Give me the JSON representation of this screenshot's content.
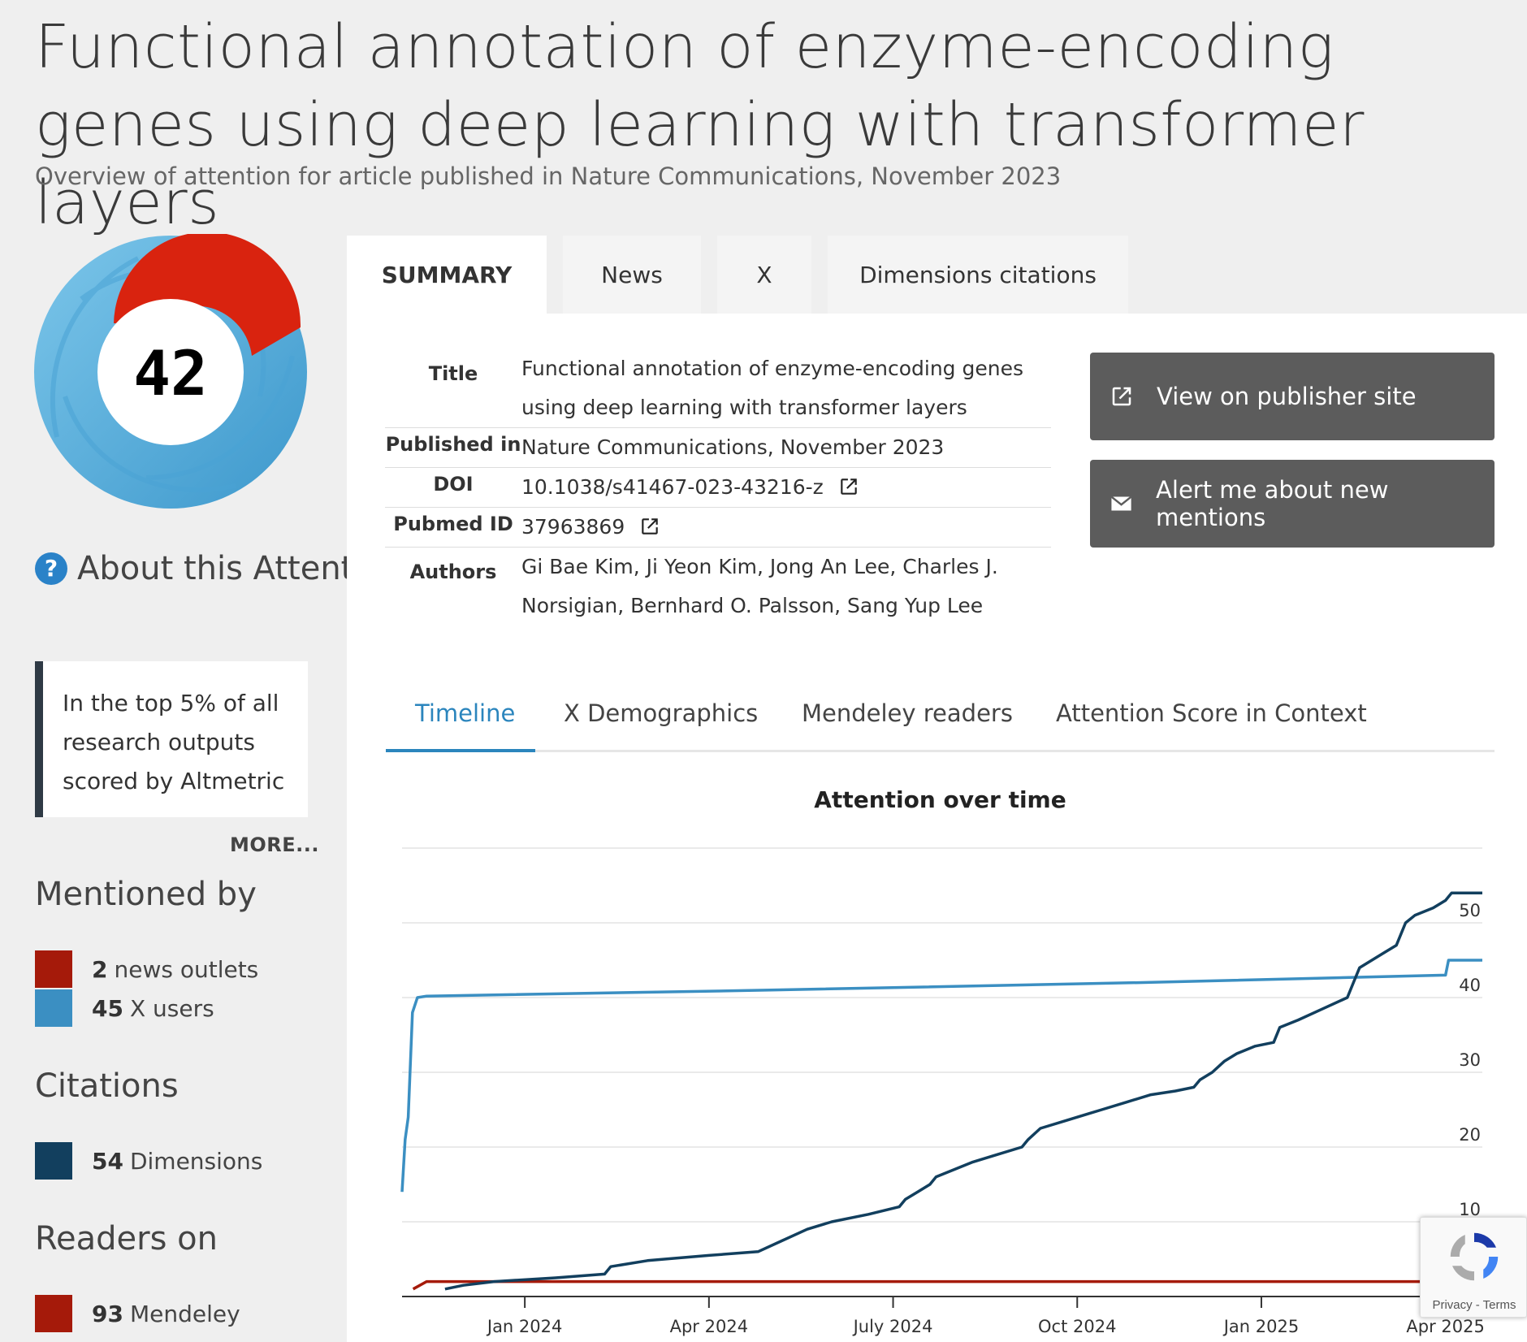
{
  "page": {
    "title": "Functional annotation of enzyme-encoding genes using deep learning with transformer layers",
    "subtitle": "Overview of attention for article published in Nature Communications, November 2023"
  },
  "score": {
    "value": "42",
    "colors": {
      "news": "#d9230f",
      "x": "#5aaee0"
    }
  },
  "about": {
    "label": "About this Attention Score",
    "help_icon": "question-icon"
  },
  "rank": {
    "text": "In the top 5% of all research outputs scored by Altmetric",
    "more_label": "MORE..."
  },
  "mentioned_by": {
    "heading": "Mentioned by",
    "items": [
      {
        "count": "2",
        "label": "news outlets",
        "color": "#a51a0a"
      },
      {
        "count": "45",
        "label": "X users",
        "color": "#3b8fc2"
      }
    ]
  },
  "citations": {
    "heading": "Citations",
    "items": [
      {
        "count": "54",
        "label": "Dimensions",
        "color": "#123f5e"
      }
    ]
  },
  "readers": {
    "heading": "Readers on",
    "items": [
      {
        "count": "93",
        "label": "Mendeley",
        "color": "#a51a0a"
      }
    ]
  },
  "tabs": [
    "SUMMARY",
    "News",
    "X",
    "Dimensions citations"
  ],
  "meta": {
    "title_label": "Title",
    "title_value": "Functional annotation of enzyme-encoding genes using deep learning with transformer layers",
    "published_label": "Published in",
    "published_value": "Nature Communications, November 2023",
    "doi_label": "DOI",
    "doi_value": "10.1038/s41467-023-43216-z",
    "pubmed_label": "Pubmed ID",
    "pubmed_value": "37963869",
    "authors_label": "Authors",
    "authors_value": "Gi Bae Kim, Ji Yeon Kim, Jong An Lee, Charles J. Norsigian, Bernhard O. Palsson, Sang Yup Lee"
  },
  "buttons": {
    "publisher": "View on publisher site",
    "alert": "Alert me about new mentions"
  },
  "subtabs": [
    "Timeline",
    "X Demographics",
    "Mendeley readers",
    "Attention Score in Context"
  ],
  "recaptcha": {
    "label": "Privacy - Terms"
  },
  "chart_data": {
    "type": "line",
    "title": "Attention over time",
    "xlabel": "",
    "ylabel": "",
    "ylim": [
      0,
      60
    ],
    "y_ticks": [
      10,
      20,
      30,
      40,
      50
    ],
    "x_ticks": [
      {
        "label": "Jan 2024",
        "month": 2
      },
      {
        "label": "Apr 2024",
        "month": 5
      },
      {
        "label": "July 2024",
        "month": 8
      },
      {
        "label": "Oct 2024",
        "month": 11
      },
      {
        "label": "Jan 2025",
        "month": 14
      },
      {
        "label": "Apr 2025",
        "month": 17
      }
    ],
    "xlim": [
      0,
      17.6
    ],
    "grid": true,
    "series": [
      {
        "name": "X users",
        "color": "#3b8fc2",
        "points": [
          [
            0.0,
            14
          ],
          [
            0.05,
            21
          ],
          [
            0.1,
            24
          ],
          [
            0.17,
            38
          ],
          [
            0.25,
            40
          ],
          [
            0.4,
            40.2
          ],
          [
            6.0,
            41
          ],
          [
            12.0,
            42
          ],
          [
            17.0,
            43
          ],
          [
            17.05,
            45
          ],
          [
            17.6,
            45
          ]
        ]
      },
      {
        "name": "news outlets",
        "color": "#a51a0a",
        "points": [
          [
            0.18,
            1
          ],
          [
            0.4,
            2
          ],
          [
            17.6,
            2
          ]
        ]
      },
      {
        "name": "Dimensions",
        "color": "#123f5e",
        "points": [
          [
            0.7,
            1
          ],
          [
            1.0,
            1.5
          ],
          [
            1.5,
            2
          ],
          [
            2.5,
            2.5
          ],
          [
            3.3,
            3
          ],
          [
            3.4,
            4
          ],
          [
            4.0,
            4.8
          ],
          [
            5.0,
            5.5
          ],
          [
            5.8,
            6
          ],
          [
            6.2,
            7.5
          ],
          [
            6.6,
            9
          ],
          [
            7.0,
            10
          ],
          [
            7.6,
            11
          ],
          [
            8.1,
            12
          ],
          [
            8.2,
            13
          ],
          [
            8.4,
            14
          ],
          [
            8.6,
            15
          ],
          [
            8.7,
            16
          ],
          [
            9.3,
            18
          ],
          [
            9.7,
            19
          ],
          [
            10.1,
            20
          ],
          [
            10.2,
            21
          ],
          [
            10.4,
            22.5
          ],
          [
            10.8,
            23.5
          ],
          [
            11.2,
            24.5
          ],
          [
            11.4,
            25
          ],
          [
            11.8,
            26
          ],
          [
            12.2,
            27
          ],
          [
            12.6,
            27.5
          ],
          [
            12.9,
            28
          ],
          [
            13.0,
            29
          ],
          [
            13.2,
            30
          ],
          [
            13.4,
            31.5
          ],
          [
            13.6,
            32.5
          ],
          [
            13.9,
            33.5
          ],
          [
            14.2,
            34
          ],
          [
            14.3,
            36
          ],
          [
            14.6,
            37
          ],
          [
            15.0,
            38.5
          ],
          [
            15.4,
            40
          ],
          [
            15.5,
            42
          ],
          [
            15.6,
            44
          ],
          [
            15.8,
            45
          ],
          [
            16.0,
            46
          ],
          [
            16.2,
            47
          ],
          [
            16.35,
            50
          ],
          [
            16.5,
            51
          ],
          [
            16.8,
            52
          ],
          [
            17.0,
            53
          ],
          [
            17.1,
            54
          ],
          [
            17.6,
            54
          ]
        ]
      }
    ]
  }
}
